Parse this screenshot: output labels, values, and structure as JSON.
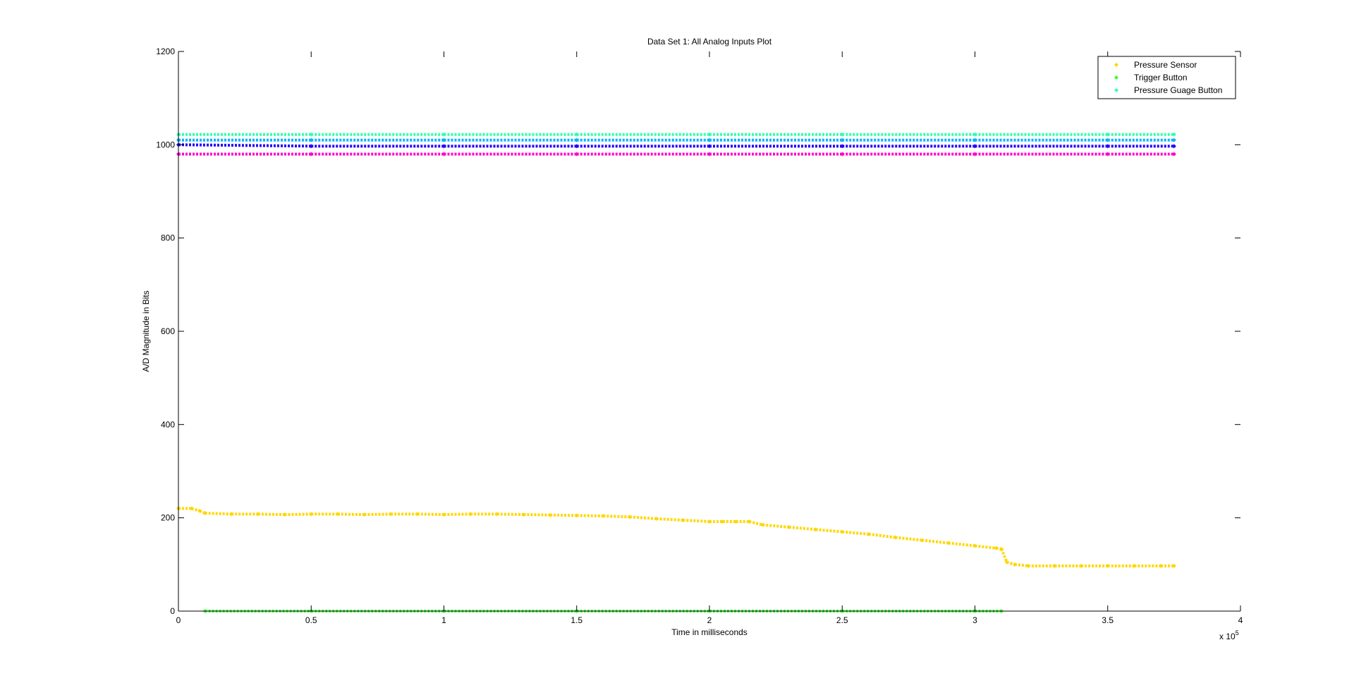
{
  "window": {
    "title": "Data Set 1: All Analog Inputs Plot"
  },
  "chart_data": {
    "type": "scatter",
    "title": "Data Set 1: All Analog Inputs Plot",
    "xlabel": "Time in milliseconds",
    "ylabel": "A/D Magnitude in Bits",
    "x_exponent_label": "x 10",
    "x_exponent_power": "5",
    "xlim": [
      0,
      4
    ],
    "ylim": [
      0,
      1200
    ],
    "xticks": [
      0,
      0.5,
      1,
      1.5,
      2,
      2.5,
      3,
      3.5,
      4
    ],
    "xtick_labels": [
      "0",
      "0.5",
      "1",
      "1.5",
      "2",
      "2.5",
      "3",
      "3.5",
      "4"
    ],
    "yticks": [
      0,
      200,
      400,
      600,
      800,
      1000,
      1200
    ],
    "ytick_labels": [
      "0",
      "200",
      "400",
      "600",
      "800",
      "1000",
      "1200"
    ],
    "grid": false,
    "legend_position": "top-right",
    "legend": [
      {
        "label": "Pressure Sensor",
        "color": "#ffd700"
      },
      {
        "label": "Trigger Button",
        "color": "#33ff33"
      },
      {
        "label": "Pressure Guage Button",
        "color": "#33ffaa"
      }
    ],
    "series": [
      {
        "name": "Pressure Sensor",
        "color": "#ffd700",
        "points": [
          [
            0,
            220
          ],
          [
            0.05,
            220
          ],
          [
            0.08,
            215
          ],
          [
            0.1,
            210
          ],
          [
            0.2,
            208
          ],
          [
            0.3,
            208
          ],
          [
            0.4,
            207
          ],
          [
            0.5,
            208
          ],
          [
            0.6,
            208
          ],
          [
            0.7,
            207
          ],
          [
            0.8,
            208
          ],
          [
            0.9,
            208
          ],
          [
            1.0,
            207
          ],
          [
            1.1,
            208
          ],
          [
            1.2,
            208
          ],
          [
            1.3,
            207
          ],
          [
            1.4,
            206
          ],
          [
            1.5,
            205
          ],
          [
            1.6,
            204
          ],
          [
            1.7,
            202
          ],
          [
            1.8,
            198
          ],
          [
            1.9,
            195
          ],
          [
            2.0,
            192
          ],
          [
            2.05,
            192
          ],
          [
            2.1,
            192
          ],
          [
            2.15,
            192
          ],
          [
            2.2,
            185
          ],
          [
            2.3,
            180
          ],
          [
            2.4,
            175
          ],
          [
            2.5,
            170
          ],
          [
            2.6,
            165
          ],
          [
            2.7,
            158
          ],
          [
            2.8,
            152
          ],
          [
            2.9,
            146
          ],
          [
            3.0,
            140
          ],
          [
            3.08,
            135
          ],
          [
            3.1,
            133
          ],
          [
            3.12,
            105
          ],
          [
            3.15,
            100
          ],
          [
            3.2,
            97
          ],
          [
            3.3,
            97
          ],
          [
            3.4,
            97
          ],
          [
            3.5,
            97
          ],
          [
            3.6,
            97
          ],
          [
            3.7,
            97
          ],
          [
            3.75,
            97
          ]
        ]
      },
      {
        "name": "Trigger Button",
        "color": "#33ff33",
        "points": [
          [
            0.1,
            0
          ],
          [
            0.5,
            0
          ],
          [
            1.0,
            0
          ],
          [
            1.5,
            0
          ],
          [
            2.0,
            0
          ],
          [
            2.5,
            0
          ],
          [
            3.0,
            0
          ],
          [
            3.1,
            0
          ]
        ]
      },
      {
        "name": "Pressure Guage Button",
        "color": "#33ffaa",
        "points": [
          [
            0,
            1022
          ],
          [
            0.5,
            1022
          ],
          [
            1.0,
            1022
          ],
          [
            1.5,
            1022
          ],
          [
            2.0,
            1022
          ],
          [
            2.5,
            1022
          ],
          [
            3.0,
            1022
          ],
          [
            3.5,
            1022
          ],
          [
            3.75,
            1022
          ]
        ]
      },
      {
        "name": "",
        "color": "#00b4ff",
        "points": [
          [
            0,
            1010
          ],
          [
            0.5,
            1010
          ],
          [
            1.0,
            1010
          ],
          [
            1.5,
            1010
          ],
          [
            2.0,
            1010
          ],
          [
            2.5,
            1010
          ],
          [
            3.0,
            1010
          ],
          [
            3.5,
            1010
          ],
          [
            3.75,
            1010
          ]
        ]
      },
      {
        "name": "",
        "color": "#2200ff",
        "points": [
          [
            0,
            1000
          ],
          [
            0.5,
            997
          ],
          [
            1.0,
            997
          ],
          [
            1.5,
            997
          ],
          [
            2.0,
            997
          ],
          [
            2.5,
            997
          ],
          [
            3.0,
            997
          ],
          [
            3.5,
            997
          ],
          [
            3.75,
            997
          ]
        ]
      },
      {
        "name": "",
        "color": "#ff00cc",
        "points": [
          [
            0,
            980
          ],
          [
            0.5,
            980
          ],
          [
            1.0,
            980
          ],
          [
            1.5,
            980
          ],
          [
            2.0,
            980
          ],
          [
            2.5,
            980
          ],
          [
            3.0,
            980
          ],
          [
            3.5,
            980
          ],
          [
            3.75,
            980
          ]
        ]
      }
    ]
  }
}
